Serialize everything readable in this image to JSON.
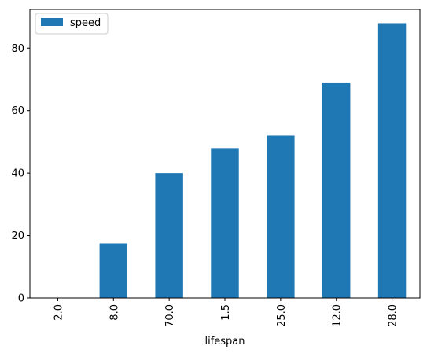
{
  "chart_data": {
    "type": "bar",
    "categories": [
      "2.0",
      "8.0",
      "70.0",
      "1.5",
      "25.0",
      "12.0",
      "28.0"
    ],
    "series": [
      {
        "name": "speed",
        "values": [
          0.1,
          17.5,
          40,
          48,
          52,
          69,
          88
        ],
        "color": "#1f77b4"
      }
    ],
    "xlabel": "lifespan",
    "ylabel": "",
    "ylim": [
      0,
      92.4
    ],
    "yticks": [
      0,
      20,
      40,
      60,
      80
    ],
    "x_tick_rotation": "vertical",
    "legend": {
      "position": "top-left",
      "entries": [
        "speed"
      ]
    },
    "grid": false
  }
}
